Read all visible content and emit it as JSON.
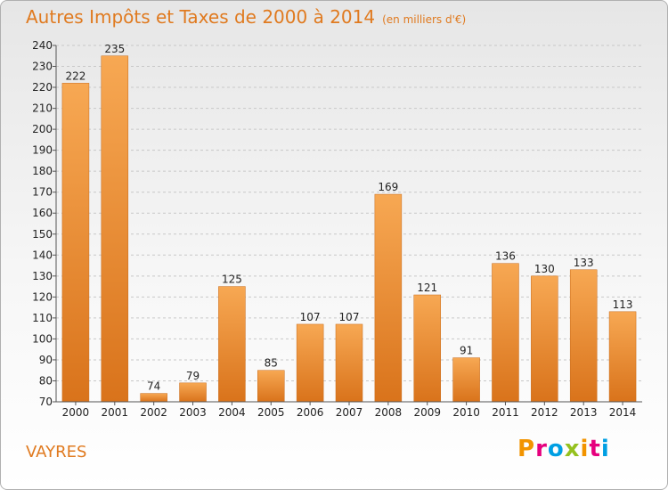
{
  "title": "Autres Impôts et Taxes de 2000 à 2014",
  "subtitle": "(en milliers d'€)",
  "place": "VAYRES",
  "logo_letters": [
    "P",
    "r",
    "o",
    "x",
    "i",
    "t",
    "i"
  ],
  "colors": {
    "accent": "#e07a1f",
    "bar_top": "#f7a853",
    "bar_bottom": "#d9731b",
    "grid": "#c8c8c8"
  },
  "chart_data": {
    "type": "bar",
    "categories": [
      "2000",
      "2001",
      "2002",
      "2003",
      "2004",
      "2005",
      "2006",
      "2007",
      "2008",
      "2009",
      "2010",
      "2011",
      "2012",
      "2013",
      "2014"
    ],
    "values": [
      222,
      235,
      74,
      79,
      125,
      85,
      107,
      107,
      169,
      121,
      91,
      136,
      130,
      133,
      113
    ],
    "title": "Autres Impôts et Taxes de 2000 à 2014",
    "subtitle": "(en milliers d'€)",
    "xlabel": "",
    "ylabel": "",
    "ylim": [
      70,
      240
    ],
    "yticks": [
      70,
      80,
      90,
      100,
      110,
      120,
      130,
      140,
      150,
      160,
      170,
      180,
      190,
      200,
      210,
      220,
      230,
      240
    ],
    "grid": true,
    "data_labels": true
  }
}
